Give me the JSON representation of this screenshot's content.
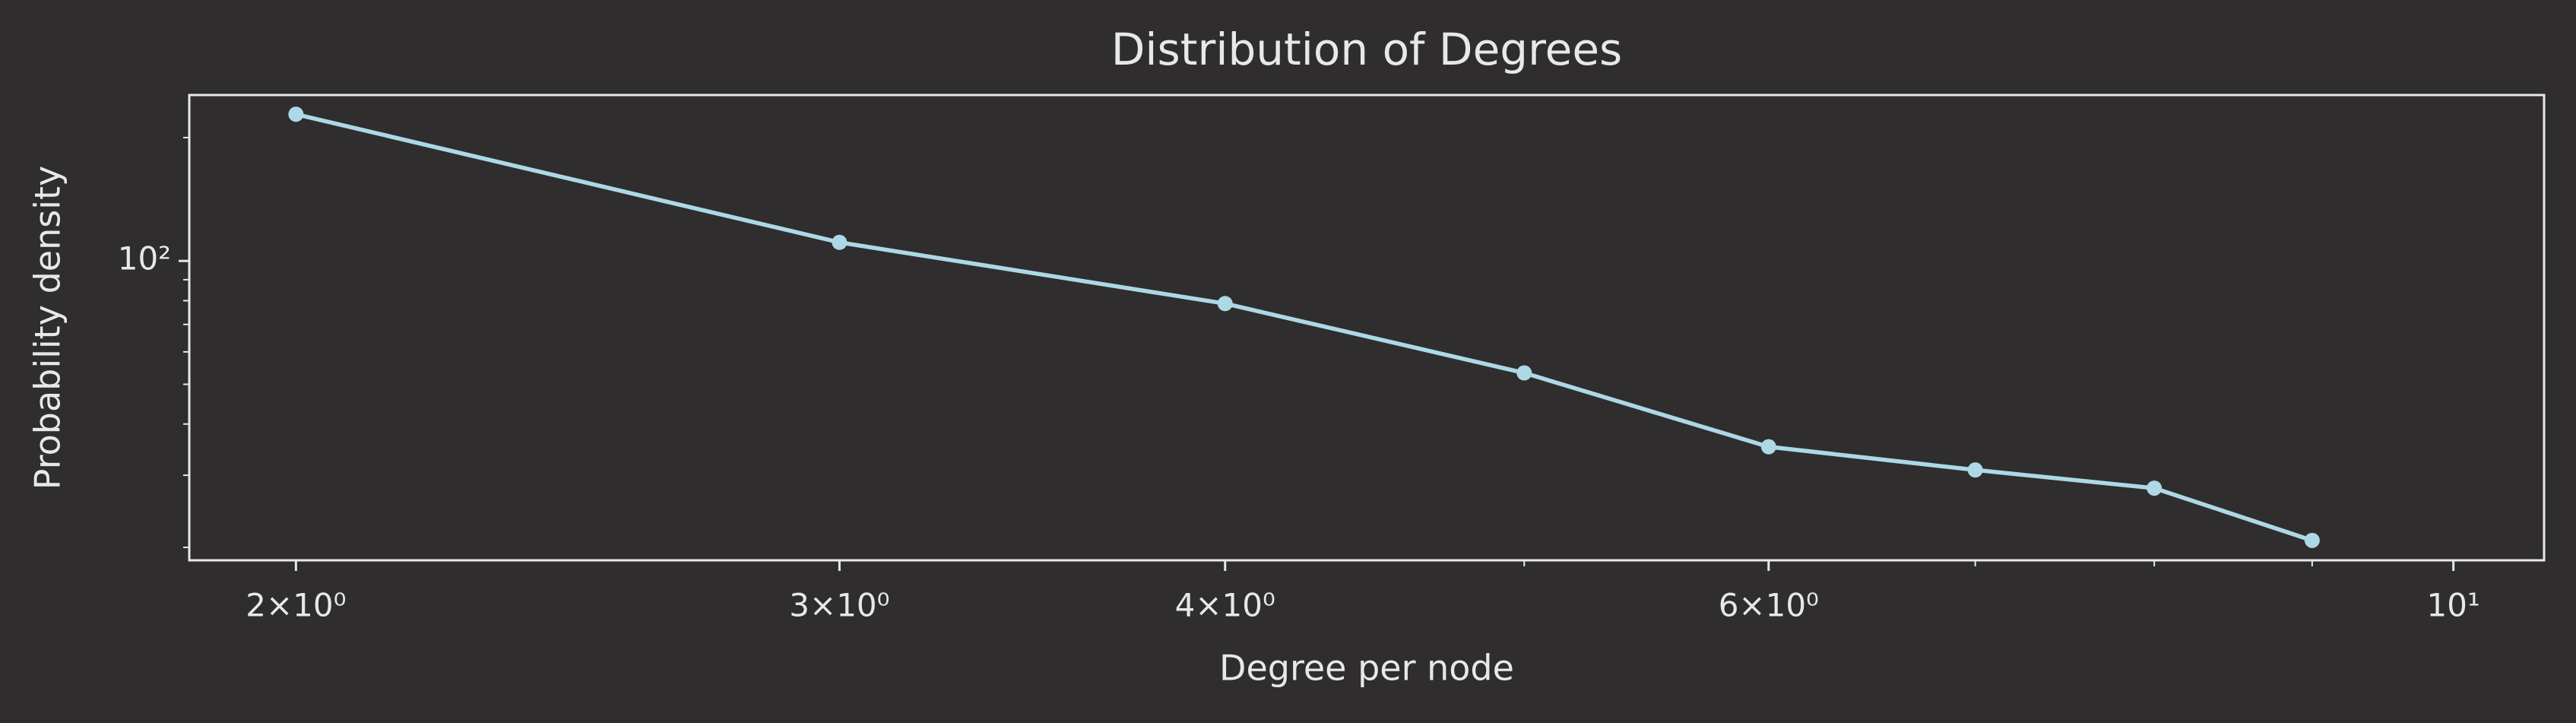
{
  "chart_data": {
    "type": "line",
    "title": "Distribution of Degrees",
    "x_label": "Degree per node",
    "y_label": "Probability density",
    "xscale": "log",
    "yscale": "log",
    "x": [
      2,
      3,
      4,
      5,
      6,
      7,
      8,
      9
    ],
    "series": [
      {
        "color": "#add8e6",
        "values": [
          228,
          111,
          78.7,
          53.3,
          35.2,
          30.9,
          27.9,
          20.8
        ]
      }
    ],
    "xlim": [
      1.847,
      10.7
    ],
    "ylim": [
      18.6,
      254
    ],
    "xticks": [
      {
        "value": 2,
        "label": "2×10⁰"
      },
      {
        "value": 3,
        "label": "3×10⁰"
      },
      {
        "value": 4,
        "label": "4×10⁰"
      },
      {
        "value": 6,
        "label": "6×10⁰"
      },
      {
        "value": 10,
        "label": "10¹"
      }
    ],
    "xminor_ticks": [
      5,
      7,
      8,
      9
    ],
    "yticks": [
      {
        "value": 100,
        "label": "10²"
      }
    ],
    "yminor_ticks": [
      20,
      30,
      40,
      50,
      60,
      70,
      80,
      90,
      200
    ],
    "grid": false
  }
}
